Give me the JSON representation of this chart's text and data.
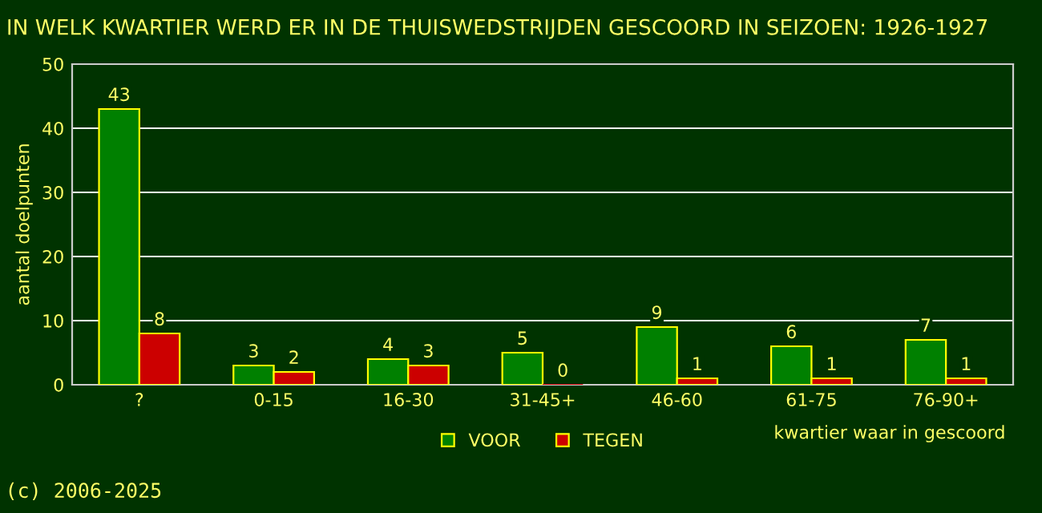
{
  "chart_data": {
    "type": "bar",
    "title": "IN WELK KWARTIER WERD ER IN DE THUISWEDSTRIJDEN GESCOORD IN SEIZOEN: 1926-1927",
    "xlabel": "kwartier waar in gescoord",
    "ylabel": "aantal doelpunten",
    "categories": [
      "?",
      "0-15",
      "16-30",
      "31-45+",
      "46-60",
      "61-75",
      "76-90+"
    ],
    "series": [
      {
        "name": "VOOR",
        "color": "#008000",
        "values": [
          43,
          3,
          4,
          5,
          9,
          6,
          7
        ]
      },
      {
        "name": "TEGEN",
        "color": "#cc0000",
        "values": [
          8,
          2,
          3,
          0,
          1,
          1,
          1
        ]
      }
    ],
    "ylim": [
      0,
      50
    ],
    "yticks": [
      0,
      10,
      20,
      30,
      40,
      50
    ],
    "grid": "y",
    "legend": "bottom",
    "data_labels": true,
    "annotations": [
      "(c) 2006-2025"
    ]
  }
}
